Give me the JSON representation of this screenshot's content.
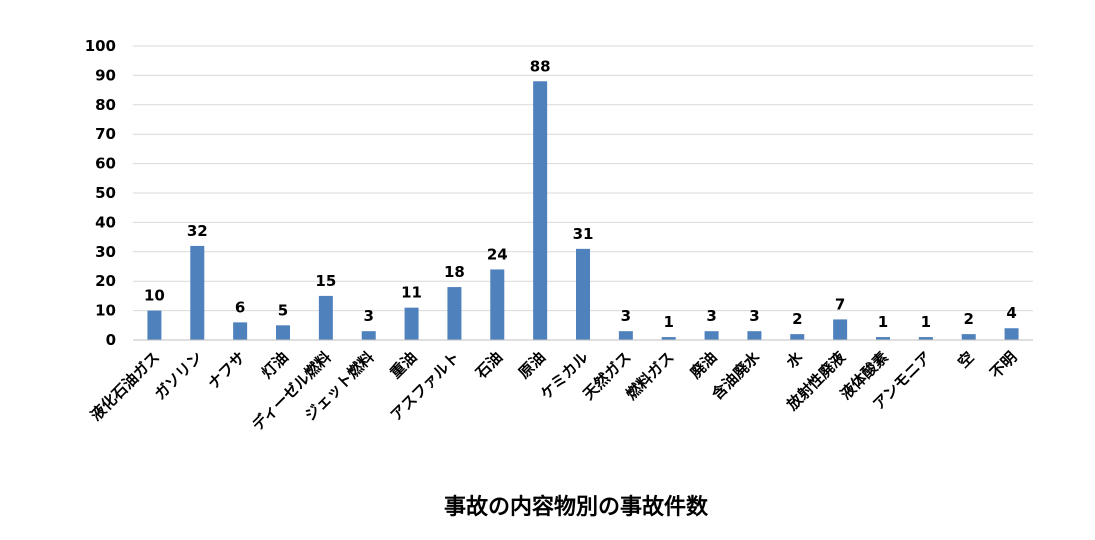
{
  "chart_data": {
    "type": "bar",
    "title": "",
    "xlabel": "事故の内容物別の事故件数",
    "ylabel": "",
    "ylim": [
      0,
      100
    ],
    "yticks": [
      0,
      10,
      20,
      30,
      40,
      50,
      60,
      70,
      80,
      90,
      100
    ],
    "grid": true,
    "legend": "none",
    "bar_color": "#4F81BD",
    "categories": [
      "液化石油ガス",
      "ガソリン",
      "ナフサ",
      "灯油",
      "ディーゼル燃料",
      "ジェット燃料",
      "重油",
      "アスファルト",
      "石油",
      "原油",
      "ケミカル",
      "天然ガス",
      "燃料ガス",
      "廃油",
      "含油廃水",
      "水",
      "放射性廃液",
      "液体酸素",
      "アンモニア",
      "空",
      "不明"
    ],
    "values": [
      10,
      32,
      6,
      5,
      15,
      3,
      11,
      18,
      24,
      88,
      31,
      3,
      1,
      3,
      3,
      2,
      7,
      1,
      1,
      2,
      4
    ]
  }
}
